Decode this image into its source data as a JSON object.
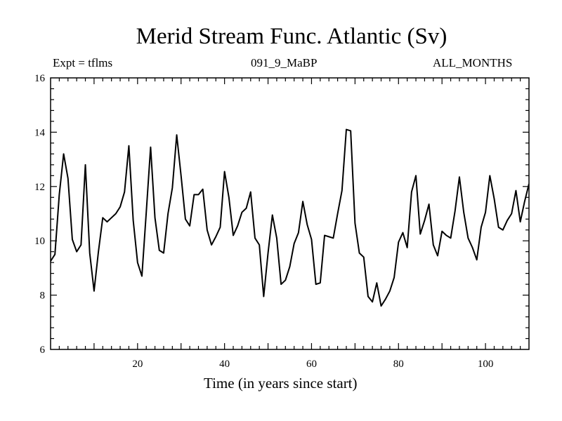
{
  "chart_data": {
    "type": "line",
    "title": "Merid Stream Func. Atlantic (Sv)",
    "subtitle_left": "Expt = tflms",
    "subtitle_center": "091_9_MaBP",
    "subtitle_right": "ALL_MONTHS",
    "xlabel": "Time (in years since start)",
    "ylabel": "",
    "xlim": [
      0,
      110
    ],
    "ylim": [
      6,
      16
    ],
    "xticks": [
      20,
      40,
      60,
      80,
      100
    ],
    "yticks": [
      6,
      8,
      10,
      12,
      14,
      16
    ],
    "grid": false,
    "series": [
      {
        "name": "Merid Stream Func. Atlantic",
        "x": [
          0,
          1,
          2,
          3,
          4,
          5,
          6,
          7,
          8,
          9,
          10,
          11,
          12,
          13,
          14,
          15,
          16,
          17,
          18,
          19,
          20,
          21,
          22,
          23,
          24,
          25,
          26,
          27,
          28,
          29,
          30,
          31,
          32,
          33,
          34,
          35,
          36,
          37,
          38,
          39,
          40,
          41,
          42,
          43,
          44,
          45,
          46,
          47,
          48,
          49,
          50,
          51,
          52,
          53,
          54,
          55,
          56,
          57,
          58,
          59,
          60,
          61,
          62,
          63,
          64,
          65,
          66,
          67,
          68,
          69,
          70,
          71,
          72,
          73,
          74,
          75,
          76,
          77,
          78,
          79,
          80,
          81,
          82,
          83,
          84,
          85,
          86,
          87,
          88,
          89,
          90,
          91,
          92,
          93,
          94,
          95,
          96,
          97,
          98,
          99,
          100,
          101,
          102,
          103,
          104,
          105,
          106,
          107,
          108,
          109,
          110
        ],
        "values": [
          9.25,
          9.5,
          11.7,
          13.2,
          12.3,
          10.05,
          9.6,
          9.85,
          12.8,
          9.55,
          8.15,
          9.6,
          10.85,
          10.7,
          10.85,
          11,
          11.25,
          11.8,
          13.5,
          10.75,
          9.2,
          8.7,
          11.05,
          13.45,
          10.85,
          9.65,
          9.55,
          11,
          11.95,
          13.9,
          12.4,
          10.8,
          10.55,
          11.7,
          11.7,
          11.9,
          10.4,
          9.85,
          10.15,
          10.5,
          12.55,
          11.6,
          10.2,
          10.55,
          11.05,
          11.2,
          11.8,
          10.1,
          9.85,
          7.95,
          9.55,
          10.95,
          10.1,
          8.4,
          8.55,
          9.05,
          9.9,
          10.3,
          11.45,
          10.6,
          10.05,
          8.4,
          8.45,
          10.2,
          10.15,
          10.1,
          11,
          11.85,
          14.1,
          14.05,
          10.65,
          9.55,
          9.4,
          7.95,
          7.75,
          8.45,
          7.6,
          7.85,
          8.15,
          8.65,
          9.95,
          10.3,
          9.75,
          11.8,
          12.4,
          10.25,
          10.75,
          11.35,
          9.85,
          9.45,
          10.35,
          10.2,
          10.1,
          11.1,
          12.35,
          11.05,
          10.1,
          9.75,
          9.3,
          10.5,
          11.05,
          12.4,
          11.55,
          10.5,
          10.4,
          10.75,
          11,
          11.85,
          10.7,
          11.45,
          12.1
        ]
      }
    ]
  }
}
